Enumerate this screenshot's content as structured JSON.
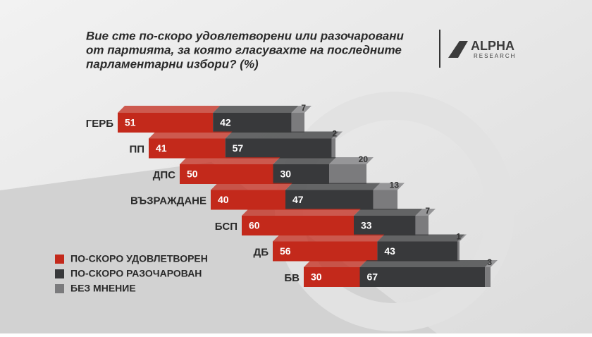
{
  "chart_data": {
    "type": "stacked-bar",
    "title": [
      "Вие сте по-скоро удовлетворени или разочаровани",
      "от партията, за която гласувахте на последните",
      "парламентарни избори? (%)"
    ],
    "categories": [
      "ГЕРБ",
      "ПП",
      "ДПС",
      "ВЪЗРАЖДАНЕ",
      "БСП",
      "ДБ",
      "БВ"
    ],
    "series": [
      {
        "name": "ПО-СКОРО УДОВЛЕТВОРЕН",
        "color": "#c3291b",
        "values": [
          51,
          41,
          50,
          40,
          60,
          56,
          30
        ]
      },
      {
        "name": "ПО-СКОРО РАЗОЧАРОВАН",
        "color": "#38393b",
        "values": [
          42,
          57,
          30,
          47,
          33,
          43,
          67
        ]
      },
      {
        "name": "БЕЗ МНЕНИЕ",
        "color": "#7b7b7d",
        "values": [
          7,
          2,
          20,
          13,
          7,
          1,
          3
        ]
      }
    ],
    "xlim": [
      0,
      100
    ]
  },
  "logo": {
    "name": "ALPHA",
    "sub": "RESEARCH"
  }
}
